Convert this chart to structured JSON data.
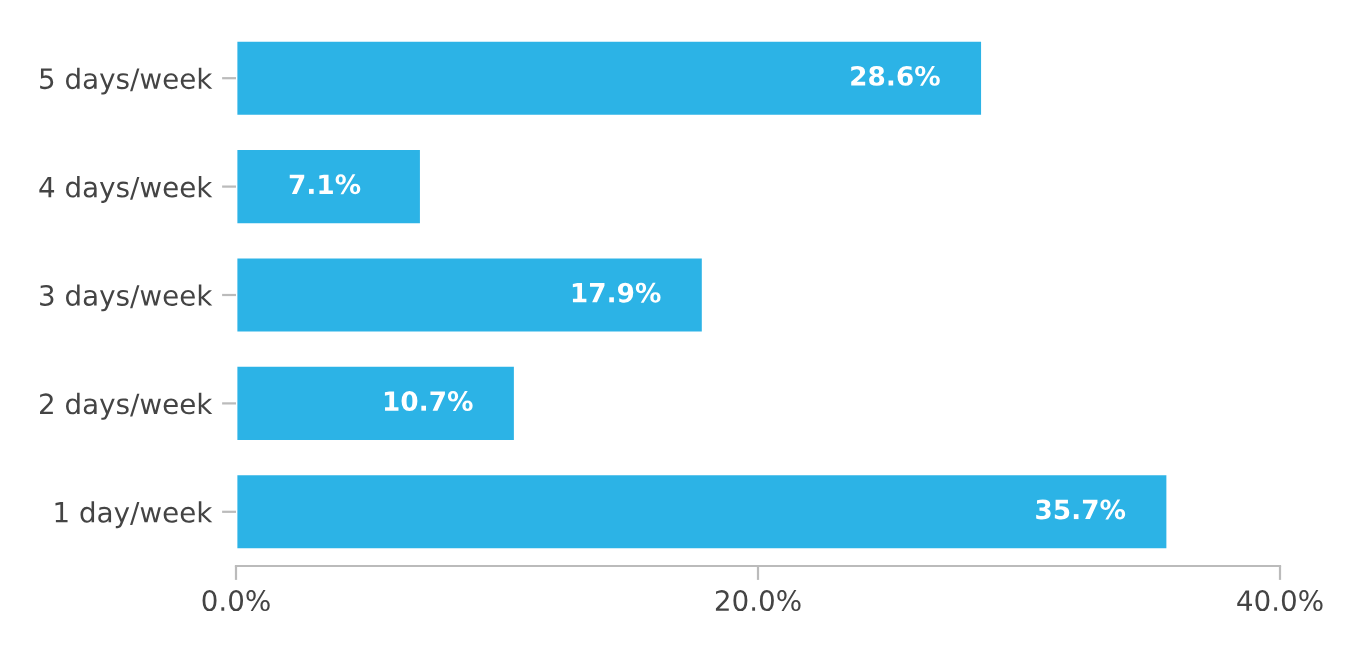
{
  "chart_data": {
    "type": "bar",
    "orientation": "horizontal",
    "categories": [
      "5 days/week",
      "4 days/week",
      "3 days/week",
      "2 days/week",
      "1 day/week"
    ],
    "values": [
      28.6,
      7.1,
      17.9,
      10.7,
      35.7
    ],
    "value_labels": [
      "28.6%",
      "7.1%",
      "17.9%",
      "10.7%",
      "35.7%"
    ],
    "color": "#2cb3e6",
    "xlim": [
      0,
      40
    ],
    "xticks": [
      {
        "value": 0,
        "label": "0.0%"
      },
      {
        "value": 20,
        "label": "20.0%"
      },
      {
        "value": 40,
        "label": "40.0%"
      }
    ],
    "grid": false
  }
}
